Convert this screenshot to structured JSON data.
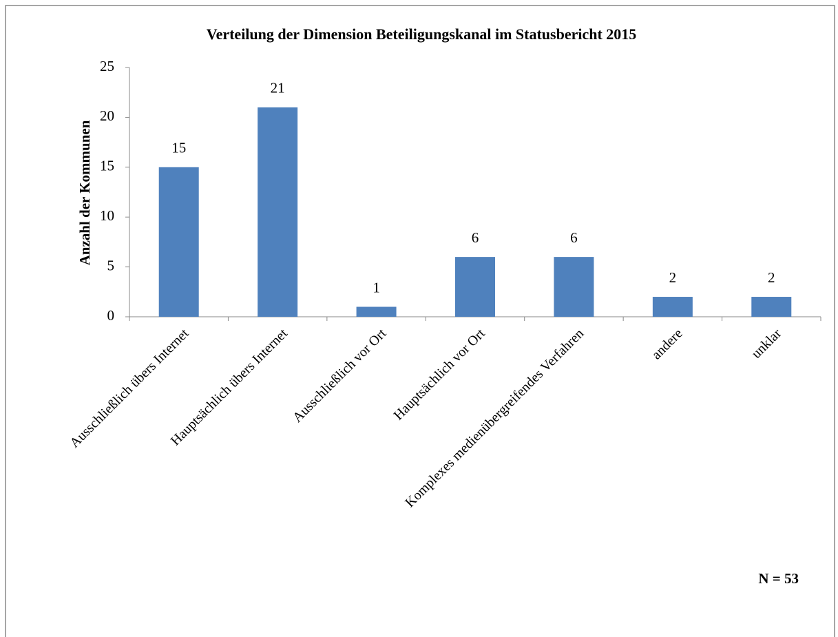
{
  "chart_data": {
    "type": "bar",
    "title": "Verteilung der Dimension Beteiligungskanal im Statusbericht 2015",
    "y_label": "Anzahl der Kommunen",
    "annotation": "N = 53",
    "categories": [
      "Ausschließlich übers Internet",
      "Hauptsächlich übers Internet",
      "Ausschließlich vor Ort",
      "Hauptsächlich vor Ort",
      "Komplexes medienübergreifendes Verfahren",
      "andere",
      "unklar"
    ],
    "values": [
      15,
      21,
      1,
      6,
      6,
      2,
      2
    ],
    "color": "#4f81bd",
    "ylim": [
      0,
      25
    ],
    "yticks": [
      0,
      5,
      10,
      15,
      20,
      25
    ],
    "grid": false
  }
}
